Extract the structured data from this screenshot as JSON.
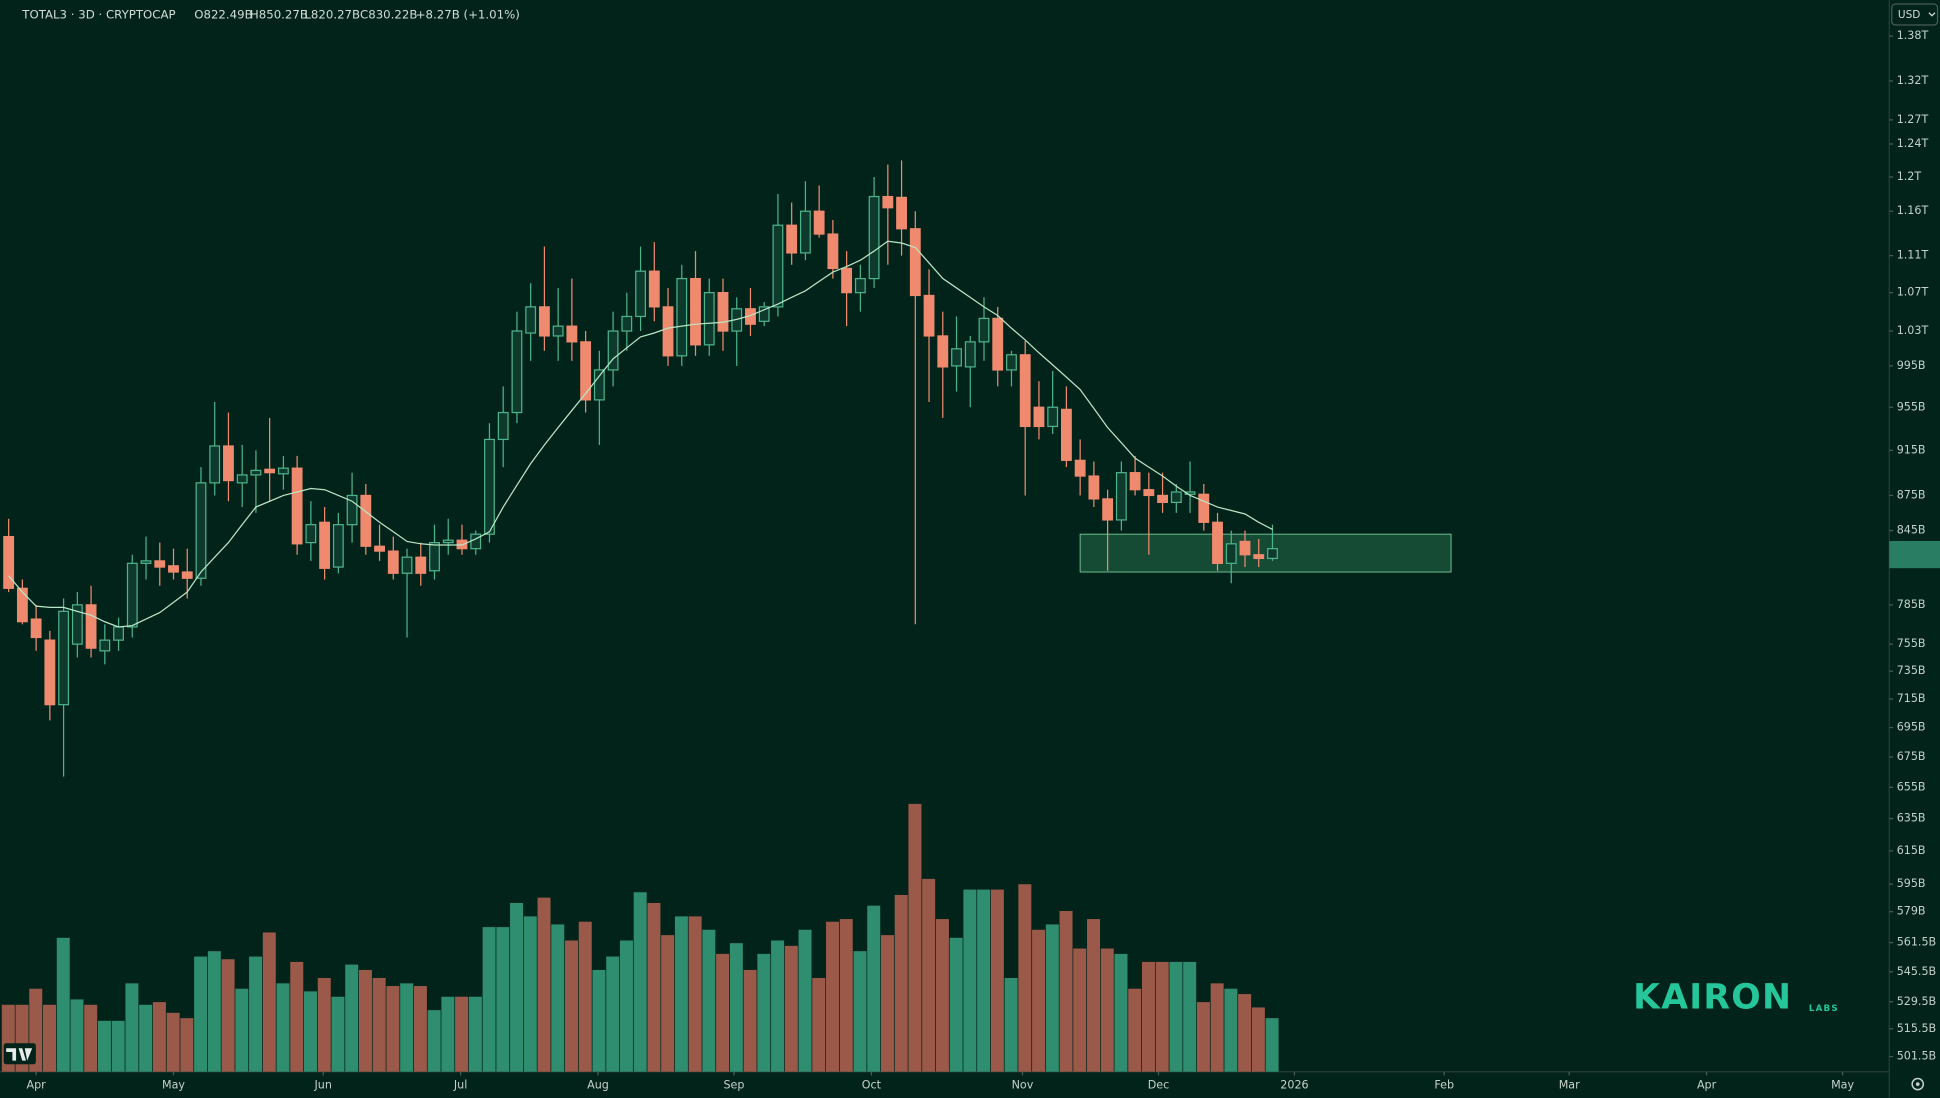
{
  "header": {
    "symbol": "TOTAL3 · 3D · CRYPTOCAP",
    "open": "O822.49B",
    "high": "H850.27B",
    "low": "L820.27B",
    "close": "C830.22B",
    "change": "+8.27B (+1.01%)",
    "currency": "USD"
  },
  "watermark": {
    "brand": "KAIRON",
    "sub": "LABS"
  },
  "chart_data": {
    "type": "candlestick",
    "log_scale": true,
    "up_color": "#4db38a",
    "down_color": "#f08a6e",
    "ma_color": "#b9e6c6",
    "volume_up_color": "#2f8d70",
    "volume_down_color": "#9b5a49",
    "zone_color": "#2f7a55",
    "xlim": [
      -0.63,
      136.9
    ],
    "ylim": [
      1430,
      494
    ],
    "volume_ylim": [
      0,
      400
    ],
    "xticks": [
      {
        "value": 2,
        "label": "Apr"
      },
      {
        "value": 12,
        "label": "May"
      },
      {
        "value": 22.9,
        "label": "Jun"
      },
      {
        "value": 32.9,
        "label": "Jul"
      },
      {
        "value": 42.9,
        "label": "Aug"
      },
      {
        "value": 52.8,
        "label": "Sep"
      },
      {
        "value": 62.8,
        "label": "Oct"
      },
      {
        "value": 73.8,
        "label": "Nov"
      },
      {
        "value": 83.7,
        "label": "Dec"
      },
      {
        "value": 93.6,
        "label": "2026"
      },
      {
        "value": 104.5,
        "label": "Feb"
      },
      {
        "value": 113.6,
        "label": "Mar"
      },
      {
        "value": 123.6,
        "label": "Apr"
      },
      {
        "value": 133.5,
        "label": "May"
      }
    ],
    "yticks": [
      {
        "value": 1380,
        "label": "1.38T"
      },
      {
        "value": 1320,
        "label": "1.32T"
      },
      {
        "value": 1270,
        "label": "1.27T"
      },
      {
        "value": 1240,
        "label": "1.24T"
      },
      {
        "value": 1200,
        "label": "1.2T"
      },
      {
        "value": 1160,
        "label": "1.16T"
      },
      {
        "value": 1110,
        "label": "1.11T"
      },
      {
        "value": 1070,
        "label": "1.07T"
      },
      {
        "value": 1030,
        "label": "1.03T"
      },
      {
        "value": 995,
        "label": "995B"
      },
      {
        "value": 955,
        "label": "955B"
      },
      {
        "value": 915,
        "label": "915B"
      },
      {
        "value": 875,
        "label": "875B"
      },
      {
        "value": 845,
        "label": "845B"
      },
      {
        "value": 785,
        "label": "785B"
      },
      {
        "value": 755,
        "label": "755B"
      },
      {
        "value": 735,
        "label": "735B"
      },
      {
        "value": 715,
        "label": "715B"
      },
      {
        "value": 695,
        "label": "695B"
      },
      {
        "value": 675,
        "label": "675B"
      },
      {
        "value": 655,
        "label": "655B"
      },
      {
        "value": 635,
        "label": "635B"
      },
      {
        "value": 615,
        "label": "615B"
      },
      {
        "value": 595,
        "label": "595B"
      },
      {
        "value": 579,
        "label": "579B"
      },
      {
        "value": 561.5,
        "label": "561.5B"
      },
      {
        "value": 545.5,
        "label": "545.5B"
      },
      {
        "value": 529.5,
        "label": "529.5B"
      },
      {
        "value": 515.5,
        "label": "515.5B"
      },
      {
        "value": 501.5,
        "label": "501.5B"
      }
    ],
    "open": [
      840,
      798,
      774,
      758,
      711,
      755,
      785,
      750,
      758,
      768,
      818,
      820,
      816,
      811,
      806,
      886,
      919,
      886,
      893,
      898,
      894,
      899,
      835,
      852,
      815,
      850,
      875,
      832,
      828,
      810,
      823,
      812,
      835,
      837,
      830,
      842,
      925,
      950,
      1028,
      1055,
      1025,
      1035,
      1019,
      962,
      991,
      1030,
      1045,
      1093,
      1055,
      1005,
      1085,
      1016,
      1070,
      1030,
      1053,
      1040,
      1055,
      1144,
      1113,
      1160,
      1134,
      1096,
      1070,
      1085,
      1177,
      1176,
      1140,
      1067,
      1025,
      995,
      994,
      1019,
      1043,
      991,
      1006,
      955,
      937,
      953,
      906,
      892,
      872,
      854,
      895,
      880,
      875,
      869,
      876,
      876,
      852,
      818,
      836,
      825,
      822
    ],
    "high": [
      855,
      805,
      785,
      765,
      790,
      795,
      800,
      770,
      775,
      825,
      840,
      835,
      830,
      830,
      900,
      960,
      950,
      920,
      915,
      945,
      910,
      910,
      870,
      865,
      860,
      895,
      885,
      850,
      840,
      830,
      835,
      850,
      855,
      850,
      845,
      940,
      975,
      1050,
      1080,
      1120,
      1075,
      1085,
      1030,
      1010,
      1050,
      1070,
      1120,
      1125,
      1075,
      1100,
      1115,
      1085,
      1085,
      1065,
      1075,
      1060,
      1180,
      1170,
      1195,
      1190,
      1150,
      1115,
      1100,
      1200,
      1215,
      1220,
      1160,
      1095,
      1050,
      1045,
      1025,
      1065,
      1055,
      1010,
      1020,
      980,
      990,
      975,
      925,
      905,
      880,
      905,
      910,
      895,
      895,
      885,
      905,
      885,
      860,
      845,
      845,
      838,
      850
    ],
    "low": [
      795,
      770,
      750,
      700,
      662,
      745,
      745,
      740,
      750,
      760,
      805,
      800,
      805,
      790,
      800,
      875,
      870,
      865,
      860,
      870,
      880,
      825,
      820,
      805,
      810,
      835,
      825,
      820,
      805,
      760,
      800,
      805,
      825,
      825,
      825,
      835,
      900,
      940,
      1000,
      1010,
      1000,
      1000,
      950,
      920,
      975,
      1010,
      1030,
      1040,
      995,
      995,
      1005,
      1005,
      1010,
      995,
      1025,
      1035,
      1045,
      1100,
      1105,
      1130,
      1085,
      1035,
      1050,
      1075,
      1100,
      1110,
      770,
      960,
      945,
      970,
      955,
      1000,
      975,
      975,
      875,
      925,
      930,
      900,
      875,
      865,
      812,
      845,
      875,
      825,
      860,
      860,
      860,
      845,
      812,
      802,
      815,
      815,
      820
    ],
    "close": [
      798,
      772,
      760,
      711,
      780,
      785,
      752,
      758,
      768,
      818,
      820,
      815,
      811,
      806,
      886,
      919,
      888,
      893,
      897,
      895,
      899,
      834,
      850,
      814,
      850,
      875,
      832,
      828,
      810,
      823,
      810,
      835,
      837,
      830,
      842,
      925,
      950,
      1030,
      1055,
      1025,
      1035,
      1019,
      962,
      991,
      1030,
      1045,
      1093,
      1055,
      1005,
      1085,
      1016,
      1070,
      1030,
      1053,
      1037,
      1055,
      1144,
      1113,
      1160,
      1134,
      1096,
      1070,
      1085,
      1177,
      1164,
      1140,
      1067,
      1025,
      994,
      1012,
      1019,
      1043,
      991,
      1006,
      937,
      937,
      955,
      906,
      892,
      872,
      854,
      895,
      880,
      875,
      869,
      878,
      878,
      852,
      818,
      834,
      825,
      822,
      830
    ],
    "volume": [
      25,
      25,
      31,
      25,
      50,
      27,
      25,
      19,
      19,
      33,
      25,
      26,
      22,
      20,
      43,
      45,
      42,
      31,
      43,
      52,
      33,
      41,
      30,
      35,
      28,
      40,
      38,
      35,
      32,
      33,
      32,
      23,
      28,
      28,
      28,
      54,
      54,
      63,
      58,
      65,
      55,
      49,
      56,
      38,
      43,
      49,
      67,
      63,
      51,
      58,
      58,
      53,
      44,
      48,
      38,
      44,
      49,
      47,
      53,
      35,
      56,
      57,
      45,
      62,
      51,
      66,
      100,
      72,
      57,
      50,
      68,
      68,
      68,
      35,
      70,
      53,
      55,
      60,
      46,
      57,
      46,
      44,
      31,
      41,
      41,
      41,
      41,
      26,
      33,
      31,
      29,
      24,
      20
    ],
    "ma": [
      808,
      795,
      784,
      783,
      783,
      780,
      777,
      772,
      768,
      769,
      774,
      779,
      787,
      795,
      811,
      823,
      835,
      850,
      865,
      870,
      875,
      878,
      881,
      880,
      875,
      870,
      861,
      852,
      844,
      836,
      834,
      833,
      833,
      833,
      838,
      844,
      865,
      884,
      903,
      920,
      936,
      952,
      968,
      985,
      1002,
      1013,
      1024,
      1028,
      1033,
      1035,
      1037,
      1038,
      1039,
      1042,
      1046,
      1052,
      1058,
      1065,
      1072,
      1082,
      1092,
      1098,
      1105,
      1115,
      1126,
      1124,
      1119,
      1102,
      1085,
      1075,
      1065,
      1055,
      1046,
      1033,
      1021,
      1008,
      996,
      984,
      972,
      954,
      936,
      922,
      908,
      900,
      892,
      883,
      875,
      870,
      865,
      862,
      859,
      852,
      846
    ],
    "zone": {
      "x": [
        78,
        105
      ],
      "y": [
        811,
        842
      ]
    }
  }
}
